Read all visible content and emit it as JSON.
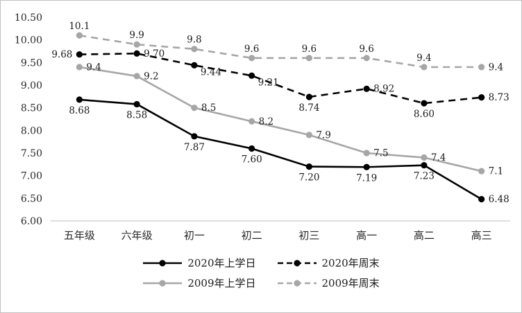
{
  "chart_data": {
    "type": "line",
    "title": "",
    "xlabel": "",
    "ylabel": "",
    "ylim": [
      6.0,
      10.5
    ],
    "grid": false,
    "legend_position": "bottom",
    "categories": [
      "五年级",
      "六年级",
      "初一",
      "初二",
      "初三",
      "高一",
      "高二",
      "高三"
    ],
    "yticks": [
      "6.00",
      "6.50",
      "7.00",
      "7.50",
      "8.00",
      "8.50",
      "9.00",
      "9.50",
      "10.00",
      "10.50"
    ],
    "series": [
      {
        "name": "2020年上学日",
        "color": "#000000",
        "dash": false,
        "values": [
          8.68,
          8.58,
          7.87,
          7.6,
          7.2,
          7.19,
          7.23,
          6.48
        ],
        "labels": [
          "8.68",
          "8.58",
          "7.87",
          "7.60",
          "7.20",
          "7.19",
          "7.23",
          "6.48"
        ],
        "label_sides": [
          "below",
          "below",
          "below",
          "below",
          "below",
          "below",
          "below",
          "right"
        ]
      },
      {
        "name": "2020年周末",
        "color": "#000000",
        "dash": true,
        "values": [
          9.68,
          9.7,
          9.44,
          9.21,
          8.74,
          8.92,
          8.6,
          8.73
        ],
        "labels": [
          "9.68",
          "9.70",
          "9.44",
          "9.21",
          "8.74",
          "8.92",
          "8.60",
          "8.73"
        ],
        "label_sides": [
          "left",
          "right",
          "right-down",
          "right-down",
          "below",
          "right",
          "below",
          "right"
        ]
      },
      {
        "name": "2009年上学日",
        "color": "#a6a6a6",
        "dash": false,
        "values": [
          9.4,
          9.2,
          8.5,
          8.2,
          7.9,
          7.5,
          7.4,
          7.1
        ],
        "labels": [
          "9.4",
          "9.2",
          "8.5",
          "8.2",
          "7.9",
          "7.5",
          "7.4",
          "7.1"
        ],
        "label_sides": [
          "right",
          "right",
          "right",
          "right",
          "right",
          "right",
          "right",
          "right"
        ]
      },
      {
        "name": "2009年周末",
        "color": "#a6a6a6",
        "dash": true,
        "values": [
          10.1,
          9.9,
          9.8,
          9.6,
          9.6,
          9.6,
          9.4,
          9.4
        ],
        "labels": [
          "10.1",
          "9.9",
          "9.8",
          "9.6",
          "9.6",
          "9.6",
          "9.4",
          "9.4"
        ],
        "label_sides": [
          "above",
          "above",
          "above",
          "above",
          "above",
          "above",
          "above",
          "right"
        ]
      }
    ],
    "legend_rows": [
      [
        0,
        1
      ],
      [
        2,
        3
      ]
    ]
  }
}
